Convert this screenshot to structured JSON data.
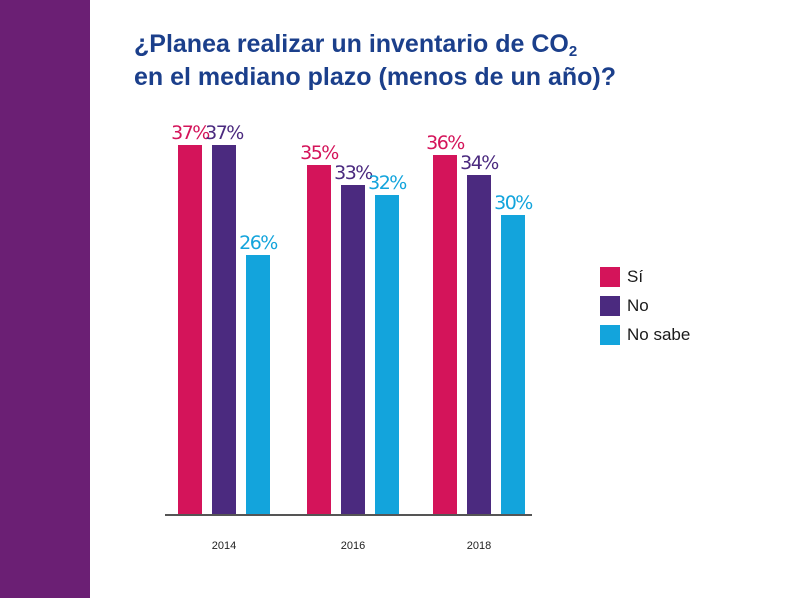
{
  "title": {
    "line1_before": "¿Planea realizar un inventario de CO",
    "line1_sub": "2",
    "line2": "en el mediano plazo (menos de un año)?"
  },
  "colors": {
    "side_band": "#6b1f74",
    "title": "#1b3f8b",
    "series": [
      "#d4145a",
      "#4b2a7f",
      "#13a4dc"
    ]
  },
  "chart_data": {
    "type": "bar",
    "title": "¿Planea realizar un inventario de CO2 en el mediano plazo (menos de un año)?",
    "categories": [
      "2014",
      "2016",
      "2018"
    ],
    "series": [
      {
        "name": "Sí",
        "values": [
          37,
          35,
          36
        ],
        "labels": [
          "37%",
          "35%",
          "36%"
        ]
      },
      {
        "name": "No",
        "values": [
          37,
          33,
          34
        ],
        "labels": [
          "37%",
          "33%",
          "34%"
        ]
      },
      {
        "name": "No sabe",
        "values": [
          26,
          32,
          30
        ],
        "labels": [
          "26%",
          "32%",
          "30%"
        ]
      }
    ],
    "xlabel": "",
    "ylabel": "",
    "ylim": [
      0,
      37
    ],
    "grid": false,
    "legend_position": "right"
  }
}
